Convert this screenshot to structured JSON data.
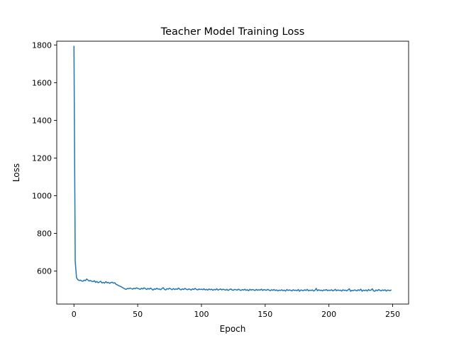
{
  "chart_data": {
    "type": "line",
    "title": "Teacher Model Training Loss",
    "xlabel": "Epoch",
    "ylabel": "Loss",
    "xlim": [
      -13.5,
      262.5
    ],
    "ylim": [
      425,
      1820
    ],
    "xticks": [
      0,
      50,
      100,
      150,
      200,
      250
    ],
    "yticks": [
      600,
      800,
      1000,
      1200,
      1400,
      1600,
      1800
    ],
    "grid": false,
    "legend": "none",
    "series": [
      {
        "color": "#1f77b4",
        "x": [
          0,
          1,
          2,
          3,
          4,
          5,
          6,
          7,
          8,
          9,
          10,
          11,
          12,
          13,
          14,
          15,
          16,
          17,
          18,
          19,
          20,
          21,
          22,
          23,
          24,
          25,
          26,
          27,
          28,
          29,
          30,
          31,
          32,
          33,
          34,
          35,
          36,
          37,
          38,
          39,
          40,
          41,
          42,
          43,
          44,
          45,
          46,
          47,
          48,
          49,
          50,
          51,
          52,
          53,
          54,
          55,
          56,
          57,
          58,
          59,
          60,
          61,
          62,
          63,
          64,
          65,
          66,
          67,
          68,
          69,
          70,
          71,
          72,
          73,
          74,
          75,
          76,
          77,
          78,
          79,
          80,
          81,
          82,
          83,
          84,
          85,
          86,
          87,
          88,
          89,
          90,
          91,
          92,
          93,
          94,
          95,
          96,
          97,
          98,
          99,
          100,
          101,
          102,
          103,
          104,
          105,
          106,
          107,
          108,
          109,
          110,
          111,
          112,
          113,
          114,
          115,
          116,
          117,
          118,
          119,
          120,
          121,
          122,
          123,
          124,
          125,
          126,
          127,
          128,
          129,
          130,
          131,
          132,
          133,
          134,
          135,
          136,
          137,
          138,
          139,
          140,
          141,
          142,
          143,
          144,
          145,
          146,
          147,
          148,
          149,
          150,
          151,
          152,
          153,
          154,
          155,
          156,
          157,
          158,
          159,
          160,
          161,
          162,
          163,
          164,
          165,
          166,
          167,
          168,
          169,
          170,
          171,
          172,
          173,
          174,
          175,
          176,
          177,
          178,
          179,
          180,
          181,
          182,
          183,
          184,
          185,
          186,
          187,
          188,
          189,
          190,
          191,
          192,
          193,
          194,
          195,
          196,
          197,
          198,
          199,
          200,
          201,
          202,
          203,
          204,
          205,
          206,
          207,
          208,
          209,
          210,
          211,
          212,
          213,
          214,
          215,
          216,
          217,
          218,
          219,
          220,
          221,
          222,
          223,
          224,
          225,
          226,
          227,
          228,
          229,
          230,
          231,
          232,
          233,
          234,
          235,
          236,
          237,
          238,
          239,
          240,
          241,
          242,
          243,
          244,
          245,
          246,
          247,
          248,
          249
        ],
        "y": [
          1795,
          650,
          565,
          555,
          550,
          552,
          548,
          546,
          552,
          549,
          558,
          552,
          547,
          550,
          546,
          544,
          549,
          540,
          545,
          538,
          542,
          546,
          537,
          540,
          536,
          544,
          538,
          540,
          535,
          539,
          541,
          536,
          538,
          530,
          527,
          523,
          520,
          517,
          513,
          509,
          505,
          503,
          508,
          506,
          510,
          507,
          504,
          509,
          506,
          511,
          508,
          506,
          503,
          509,
          505,
          511,
          507,
          502,
          508,
          504,
          510,
          505,
          499,
          506,
          503,
          509,
          504,
          505,
          501,
          507,
          512,
          503,
          500,
          507,
          504,
          509,
          505,
          501,
          507,
          502,
          506,
          503,
          510,
          504,
          500,
          506,
          502,
          508,
          504,
          501,
          505,
          503,
          499,
          506,
          502,
          508,
          503,
          500,
          505,
          502,
          504,
          501,
          506,
          500,
          503,
          499,
          505,
          501,
          504,
          498,
          503,
          500,
          506,
          499,
          502,
          505,
          500,
          504,
          501,
          499,
          503,
          497,
          502,
          505,
          500,
          498,
          503,
          501,
          499,
          504,
          500,
          497,
          502,
          499,
          504,
          498,
          501,
          496,
          503,
          499,
          502,
          500,
          497,
          503,
          498,
          501,
          499,
          504,
          497,
          502,
          500,
          498,
          503,
          499,
          496,
          501,
          498,
          502,
          497,
          500,
          495,
          499,
          497,
          501,
          496,
          499,
          494,
          502,
          497,
          500,
          498,
          495,
          501,
          497,
          499,
          496,
          502,
          493,
          500,
          498,
          496,
          501,
          497,
          503,
          495,
          499,
          497,
          500,
          494,
          498,
          508,
          496,
          501,
          497,
          499,
          495,
          500,
          498,
          502,
          496,
          499,
          497,
          501,
          495,
          498,
          503,
          496,
          500,
          497,
          499,
          494,
          501,
          497,
          499,
          495,
          500,
          506,
          493,
          498,
          496,
          500,
          498,
          495,
          501,
          497,
          504,
          493,
          499,
          496,
          500,
          494,
          502,
          497,
          499,
          506,
          495,
          493,
          500,
          496,
          502,
          498,
          495,
          500,
          497,
          501,
          494,
          499,
          498,
          496,
          501
        ]
      }
    ]
  }
}
